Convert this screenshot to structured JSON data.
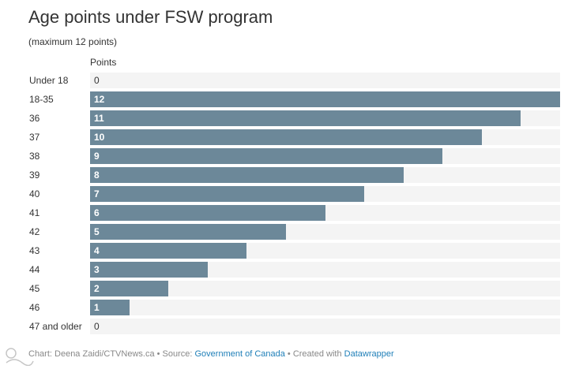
{
  "chart_data": {
    "type": "bar",
    "orientation": "horizontal",
    "title": "Age points under FSW program",
    "subtitle": "(maximum 12 points)",
    "column_header": "Points",
    "xlim": [
      0,
      12
    ],
    "categories": [
      "Under 18",
      "18-35",
      "36",
      "37",
      "38",
      "39",
      "40",
      "41",
      "42",
      "43",
      "44",
      "45",
      "46",
      "47 and older"
    ],
    "values": [
      0,
      12,
      11,
      10,
      9,
      8,
      7,
      6,
      5,
      4,
      3,
      2,
      1,
      0
    ]
  },
  "footer": {
    "chart_credit": "Chart: Deena Zaidi/CTVNews.ca",
    "separator1": " • Source: ",
    "source_link": "Government of Canada",
    "separator2": " • Created with ",
    "tool_link": "Datawrapper"
  },
  "colors": {
    "bar": "#6c8899",
    "track": "#f4f4f4",
    "link": "#1f7fb8"
  }
}
